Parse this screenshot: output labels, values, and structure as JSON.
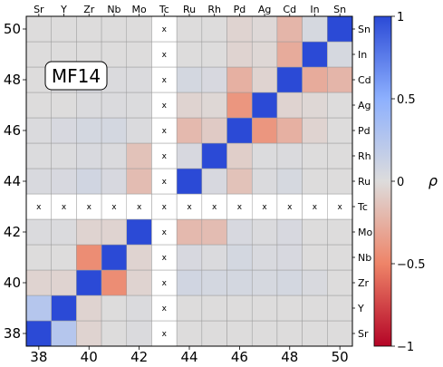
{
  "chart_data": {
    "type": "heatmap",
    "label_box": "MF14",
    "elements": [
      "Sr",
      "Y",
      "Zr",
      "Nb",
      "Mo",
      "Tc",
      "Ru",
      "Rh",
      "Pd",
      "Ag",
      "Cd",
      "In",
      "Sn"
    ],
    "x_numbers": [
      "38",
      "40",
      "42",
      "44",
      "46",
      "48",
      "50"
    ],
    "y_numbers": [
      "38",
      "40",
      "42",
      "44",
      "46",
      "48",
      "50"
    ],
    "missing_marker": "x",
    "missing_element": "Tc",
    "matrix": [
      [
        1.0,
        0.25,
        -0.05,
        0.0,
        0.02,
        null,
        0.0,
        0.0,
        0.0,
        0.0,
        0.0,
        0.0,
        0.0
      ],
      [
        0.25,
        1.0,
        -0.05,
        0.0,
        0.02,
        null,
        0.0,
        0.0,
        0.0,
        0.0,
        0.0,
        0.0,
        0.0
      ],
      [
        -0.05,
        -0.05,
        1.0,
        -0.45,
        -0.05,
        null,
        0.08,
        0.06,
        0.06,
        0.05,
        0.06,
        0.03,
        0.0
      ],
      [
        0.0,
        0.0,
        -0.45,
        1.0,
        -0.05,
        null,
        0.04,
        0.02,
        0.06,
        0.03,
        0.04,
        0.0,
        0.0
      ],
      [
        0.02,
        0.02,
        -0.05,
        -0.05,
        1.0,
        null,
        -0.2,
        -0.18,
        0.04,
        0.02,
        0.04,
        0.0,
        0.0
      ],
      [
        null,
        null,
        null,
        null,
        null,
        null,
        null,
        null,
        null,
        null,
        null,
        null,
        null
      ],
      [
        0.03,
        0.04,
        0.08,
        0.04,
        -0.18,
        null,
        1.0,
        0.04,
        -0.15,
        0.02,
        0.05,
        0.0,
        0.0
      ],
      [
        0.01,
        0.01,
        0.03,
        0.02,
        -0.15,
        null,
        0.04,
        1.0,
        -0.08,
        0.01,
        0.02,
        0.0,
        0.0
      ],
      [
        0.02,
        0.04,
        0.06,
        0.06,
        0.02,
        null,
        -0.2,
        -0.1,
        1.0,
        -0.4,
        -0.25,
        -0.05,
        0.0
      ],
      [
        0.0,
        0.0,
        0.02,
        0.02,
        0.01,
        null,
        -0.05,
        -0.03,
        -0.4,
        1.0,
        -0.05,
        -0.03,
        0.0
      ],
      [
        0.0,
        0.02,
        0.04,
        0.02,
        0.02,
        null,
        0.06,
        0.04,
        -0.25,
        -0.05,
        1.0,
        -0.28,
        -0.22
      ],
      [
        0.0,
        0.0,
        0.0,
        0.0,
        0.0,
        null,
        0.0,
        0.0,
        -0.05,
        -0.03,
        -0.28,
        1.0,
        0.05
      ],
      [
        0.0,
        0.0,
        0.0,
        0.0,
        0.0,
        null,
        0.0,
        0.0,
        -0.05,
        -0.02,
        -0.22,
        0.05,
        1.0
      ]
    ],
    "colorbar": {
      "label": "ρ",
      "min": -1,
      "max": 1,
      "ticks": [
        {
          "value": 1,
          "label": "1"
        },
        {
          "value": 0.5,
          "label": "0.5"
        },
        {
          "value": 0,
          "label": "0"
        },
        {
          "value": -0.5,
          "label": "−0.5"
        },
        {
          "value": -1,
          "label": "−1"
        }
      ],
      "colors": {
        "negative": "#b40426",
        "neutral": "#dddcdc",
        "positive": "#2b4ad6"
      }
    }
  }
}
